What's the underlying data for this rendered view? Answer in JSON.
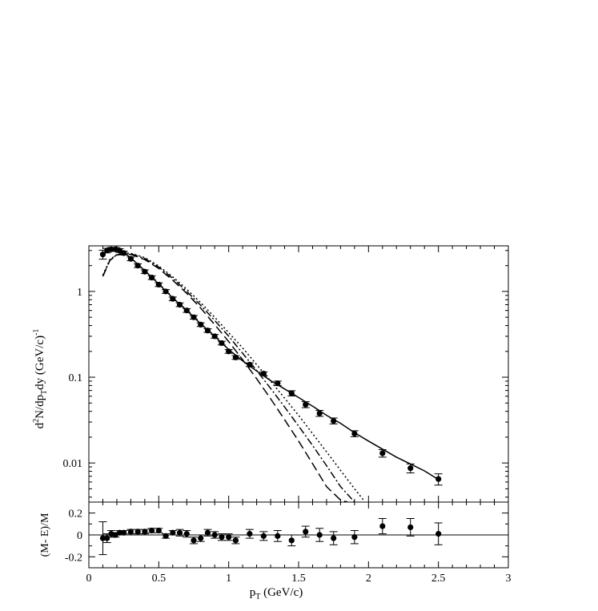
{
  "chart_data": [
    {
      "type": "line",
      "yscale": "log",
      "xlim": [
        0,
        3
      ],
      "ylim": [
        0.0035,
        3.4
      ],
      "ylabel_parts": [
        "d",
        "2",
        "N/dp",
        "T",
        "dy  (GeV/c)",
        "-1"
      ],
      "yticks": [
        {
          "value": 0.01,
          "label": "0.01"
        },
        {
          "value": 0.1,
          "label": "0.1"
        },
        {
          "value": 1,
          "label": "1"
        }
      ],
      "grid": false,
      "data_points": {
        "x": [
          0.1,
          0.13,
          0.16,
          0.19,
          0.22,
          0.25,
          0.3,
          0.35,
          0.4,
          0.45,
          0.5,
          0.55,
          0.6,
          0.65,
          0.7,
          0.75,
          0.8,
          0.85,
          0.9,
          0.95,
          1.0,
          1.05,
          1.15,
          1.25,
          1.35,
          1.45,
          1.55,
          1.65,
          1.75,
          1.9,
          2.1,
          2.3,
          2.5
        ],
        "y": [
          2.7,
          3.0,
          3.1,
          3.1,
          3.0,
          2.8,
          2.4,
          2.0,
          1.7,
          1.45,
          1.2,
          1.0,
          0.82,
          0.7,
          0.6,
          0.5,
          0.41,
          0.35,
          0.3,
          0.25,
          0.2,
          0.17,
          0.14,
          0.11,
          0.085,
          0.065,
          0.048,
          0.038,
          0.031,
          0.022,
          0.013,
          0.0087,
          0.0065
        ],
        "err_rel": [
          0.12,
          0.06,
          0.05,
          0.05,
          0.05,
          0.05,
          0.05,
          0.05,
          0.05,
          0.05,
          0.05,
          0.05,
          0.05,
          0.05,
          0.05,
          0.05,
          0.05,
          0.05,
          0.05,
          0.05,
          0.05,
          0.05,
          0.05,
          0.05,
          0.06,
          0.07,
          0.08,
          0.08,
          0.08,
          0.08,
          0.1,
          0.12,
          0.15
        ]
      },
      "curves": [
        {
          "style": "solid",
          "x": [
            0.1,
            0.15,
            0.2,
            0.25,
            0.3,
            0.4,
            0.5,
            0.6,
            0.7,
            0.8,
            0.9,
            1.0,
            1.1,
            1.2,
            1.3,
            1.4,
            1.5,
            1.6,
            1.7,
            1.8,
            1.9,
            2.0,
            2.2,
            2.4,
            2.5
          ],
          "y": [
            2.75,
            3.05,
            3.1,
            2.85,
            2.45,
            1.75,
            1.22,
            0.84,
            0.6,
            0.42,
            0.3,
            0.21,
            0.155,
            0.118,
            0.091,
            0.073,
            0.058,
            0.046,
            0.036,
            0.029,
            0.0225,
            0.018,
            0.0117,
            0.0081,
            0.0064
          ]
        },
        {
          "style": "dashed",
          "x": [
            0.1,
            0.15,
            0.2,
            0.25,
            0.3,
            0.4,
            0.5,
            0.6,
            0.7,
            0.8,
            0.9,
            1.0,
            1.1,
            1.2,
            1.3,
            1.4,
            1.5,
            1.6,
            1.7,
            1.8,
            1.85
          ],
          "y": [
            1.5,
            2.3,
            2.65,
            2.75,
            2.7,
            2.35,
            1.85,
            1.35,
            0.95,
            0.64,
            0.41,
            0.26,
            0.16,
            0.096,
            0.056,
            0.032,
            0.018,
            0.0098,
            0.0053,
            0.0037,
            0.0035
          ]
        },
        {
          "style": "dash-dot",
          "x": [
            0.1,
            0.15,
            0.2,
            0.25,
            0.3,
            0.4,
            0.5,
            0.6,
            0.7,
            0.8,
            0.9,
            1.0,
            1.1,
            1.2,
            1.3,
            1.4,
            1.5,
            1.6,
            1.7,
            1.8,
            1.9
          ],
          "y": [
            1.5,
            2.3,
            2.68,
            2.78,
            2.75,
            2.42,
            1.92,
            1.42,
            1.0,
            0.69,
            0.46,
            0.3,
            0.19,
            0.12,
            0.074,
            0.045,
            0.027,
            0.016,
            0.0093,
            0.0053,
            0.0035
          ]
        },
        {
          "style": "dotted",
          "x": [
            0.1,
            0.15,
            0.2,
            0.25,
            0.3,
            0.4,
            0.5,
            0.6,
            0.7,
            0.8,
            0.9,
            1.0,
            1.1,
            1.2,
            1.3,
            1.4,
            1.5,
            1.6,
            1.7,
            1.8,
            1.9,
            1.97
          ],
          "y": [
            1.55,
            2.35,
            2.7,
            2.8,
            2.78,
            2.48,
            1.98,
            1.48,
            1.06,
            0.74,
            0.5,
            0.33,
            0.22,
            0.14,
            0.09,
            0.057,
            0.036,
            0.022,
            0.0135,
            0.0082,
            0.005,
            0.0036
          ]
        }
      ]
    },
    {
      "type": "scatter",
      "xlim": [
        0,
        3
      ],
      "ylim": [
        -0.3,
        0.3
      ],
      "xlabel_parts": [
        "p",
        "T",
        "  (GeV/c)"
      ],
      "ylabel": "(M- E)/M",
      "xticks": [
        {
          "value": 0,
          "label": "0"
        },
        {
          "value": 0.5,
          "label": "0.5"
        },
        {
          "value": 1,
          "label": "1"
        },
        {
          "value": 1.5,
          "label": "1.5"
        },
        {
          "value": 2,
          "label": "2"
        },
        {
          "value": 2.5,
          "label": "2.5"
        },
        {
          "value": 3,
          "label": "3"
        }
      ],
      "yticks": [
        {
          "value": -0.2,
          "label": "-0.2"
        },
        {
          "value": 0,
          "label": "0"
        },
        {
          "value": 0.2,
          "label": "0.2"
        }
      ],
      "reference_line": 0,
      "grid": false,
      "x": [
        0.1,
        0.13,
        0.16,
        0.19,
        0.22,
        0.25,
        0.3,
        0.35,
        0.4,
        0.45,
        0.5,
        0.55,
        0.6,
        0.65,
        0.7,
        0.75,
        0.8,
        0.85,
        0.9,
        0.95,
        1.0,
        1.05,
        1.15,
        1.25,
        1.35,
        1.45,
        1.55,
        1.65,
        1.75,
        1.9,
        2.1,
        2.3,
        2.5
      ],
      "y": [
        -0.03,
        -0.03,
        0.01,
        0.0,
        0.02,
        0.02,
        0.03,
        0.03,
        0.03,
        0.04,
        0.04,
        -0.01,
        0.02,
        0.02,
        0.01,
        -0.05,
        -0.03,
        0.02,
        0.0,
        -0.02,
        -0.02,
        -0.05,
        0.01,
        -0.01,
        -0.01,
        -0.05,
        0.03,
        0.0,
        -0.03,
        -0.02,
        0.08,
        0.07,
        0.01
      ],
      "err": [
        0.15,
        0.04,
        0.03,
        0.02,
        0.02,
        0.02,
        0.02,
        0.02,
        0.02,
        0.02,
        0.02,
        0.02,
        0.02,
        0.03,
        0.03,
        0.03,
        0.03,
        0.03,
        0.03,
        0.03,
        0.03,
        0.03,
        0.04,
        0.04,
        0.05,
        0.05,
        0.05,
        0.06,
        0.06,
        0.06,
        0.07,
        0.08,
        0.1
      ]
    }
  ]
}
